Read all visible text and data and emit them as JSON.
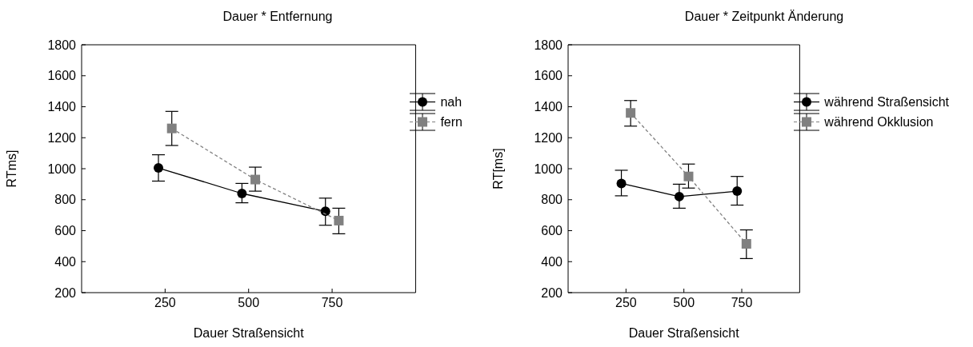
{
  "chart_data": [
    {
      "type": "line",
      "title": "Dauer * Entfernung",
      "xlabel": "Dauer Straßensicht",
      "ylabel": "RTms]",
      "xlim": [
        0,
        1000
      ],
      "xticks": [
        250,
        500,
        750
      ],
      "ylim": [
        200,
        1800
      ],
      "yticks": [
        200,
        400,
        600,
        800,
        1000,
        1200,
        1400,
        1600,
        1800
      ],
      "grid": false,
      "legend": "top right",
      "series": [
        {
          "name": "nah",
          "color": "#000000",
          "marker": "circle",
          "line_style": "solid",
          "x": [
            230,
            480,
            730
          ],
          "values": [
            1005,
            840,
            725
          ],
          "errors": [
            [
              920,
              1090
            ],
            [
              780,
              905
            ],
            [
              635,
              810
            ]
          ]
        },
        {
          "name": "fern",
          "color": "#808080",
          "marker": "square",
          "line_style": "dashed",
          "x": [
            270,
            520,
            770
          ],
          "values": [
            1260,
            930,
            665
          ],
          "errors": [
            [
              1150,
              1370
            ],
            [
              855,
              1010
            ],
            [
              580,
              745
            ]
          ]
        }
      ]
    },
    {
      "type": "line",
      "title": "Dauer * Zeitpunkt Änderung",
      "xlabel": "Dauer Straßensicht",
      "ylabel": "RT[ms]",
      "xlim": [
        0,
        1000
      ],
      "xticks": [
        250,
        500,
        750
      ],
      "ylim": [
        200,
        1800
      ],
      "yticks": [
        200,
        400,
        600,
        800,
        1000,
        1200,
        1400,
        1600,
        1800
      ],
      "grid": false,
      "legend": "top right",
      "series": [
        {
          "name": "während Straßensicht",
          "color": "#000000",
          "marker": "circle",
          "line_style": "solid",
          "x": [
            230,
            480,
            730
          ],
          "values": [
            905,
            820,
            855
          ],
          "errors": [
            [
              825,
              990
            ],
            [
              745,
              900
            ],
            [
              765,
              950
            ]
          ]
        },
        {
          "name": "während Okklusion",
          "color": "#808080",
          "marker": "square",
          "line_style": "dashed",
          "x": [
            270,
            520,
            770
          ],
          "values": [
            1360,
            950,
            515
          ],
          "errors": [
            [
              1275,
              1440
            ],
            [
              875,
              1030
            ],
            [
              420,
              605
            ]
          ]
        }
      ]
    }
  ]
}
